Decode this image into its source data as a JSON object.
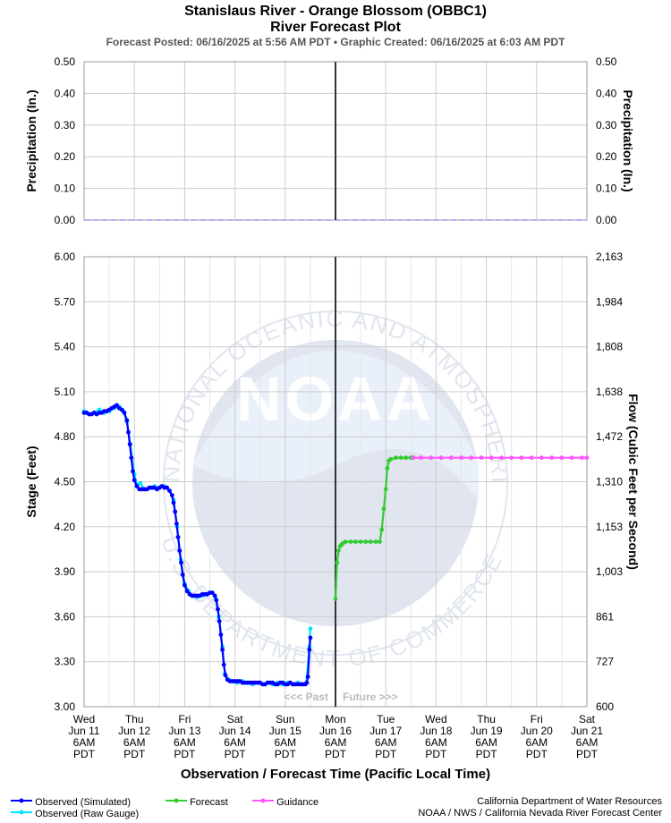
{
  "header": {
    "title_line1": "Stanislaus River - Orange Blossom (OBBC1)",
    "title_line2": "River Forecast Plot",
    "subtitle": "Forecast Posted: 06/16/2025 at 5:56 AM PDT  •  Graphic Created: 06/16/2025 at 6:03 AM PDT"
  },
  "watermark": {
    "logo_text": "NOAA",
    "ring_text_top": "NATIONAL OCEANIC AND ATMOSPHERIC ADMINISTRATION",
    "ring_text_bottom": "U.S. DEPARTMENT OF COMMERCE"
  },
  "past_future": {
    "past": "<<< Past",
    "future": "Future >>>"
  },
  "legend": [
    {
      "label": "Observed (Simulated)",
      "color": "#0000ff"
    },
    {
      "label": "Observed (Raw Gauge)",
      "color": "#00e5ff"
    },
    {
      "label": "Forecast",
      "color": "#33cc33"
    },
    {
      "label": "Guidance",
      "color": "#ff55ff"
    }
  ],
  "credits": {
    "line1": "California Department of Water Resources",
    "line2": "NOAA / NWS / California Nevada River Forecast Center"
  },
  "chart_data": [
    {
      "type": "line",
      "panel": "precipitation",
      "ylabel_left": "Precipitation (In.)",
      "ylabel_right": "Precipitation (In.)",
      "ylim": [
        0,
        0.5
      ],
      "yticks": [
        "0.00",
        "0.10",
        "0.20",
        "0.30",
        "0.40",
        "0.50"
      ],
      "grid": true,
      "series": [
        {
          "values_note": "",
          "x": [
            0,
            5
          ],
          "y": [
            0,
            0
          ],
          "color": "#9999ff"
        }
      ]
    },
    {
      "type": "line",
      "panel": "stage",
      "ylabel_left": "Stage (Feet)",
      "ylabel_right": "Flow (Cubic Feet per Second)",
      "xlabel": "Observation / Forecast Time (Pacific Local Time)",
      "ylim": [
        3.0,
        6.0
      ],
      "yticks_left": [
        "3.00",
        "3.30",
        "3.60",
        "3.90",
        "4.20",
        "4.50",
        "4.80",
        "5.10",
        "5.40",
        "5.70",
        "6.00"
      ],
      "yticks_right": [
        "600",
        "727",
        "861",
        "1,003",
        "1,153",
        "1,310",
        "1,472",
        "1,638",
        "1,808",
        "1,984",
        "2,163"
      ],
      "xticks": [
        {
          "lines": [
            "Wed",
            "Jun 11",
            "6AM",
            "PDT"
          ]
        },
        {
          "lines": [
            "Thu",
            "Jun 12",
            "6AM",
            "PDT"
          ]
        },
        {
          "lines": [
            "Fri",
            "Jun 13",
            "6AM",
            "PDT"
          ]
        },
        {
          "lines": [
            "Sat",
            "Jun 14",
            "6AM",
            "PDT"
          ]
        },
        {
          "lines": [
            "Sun",
            "Jun 15",
            "6AM",
            "PDT"
          ]
        },
        {
          "lines": [
            "Mon",
            "Jun 16",
            "6AM",
            "PDT"
          ]
        },
        {
          "lines": [
            "Tue",
            "Jun 17",
            "6AM",
            "PDT"
          ]
        },
        {
          "lines": [
            "Wed",
            "Jun 18",
            "6AM",
            "PDT"
          ]
        },
        {
          "lines": [
            "Thu",
            "Jun 19",
            "6AM",
            "PDT"
          ]
        },
        {
          "lines": [
            "Fri",
            "Jun 20",
            "6AM",
            "PDT"
          ]
        },
        {
          "lines": [
            "Sat",
            "Jun 21",
            "6AM",
            "PDT"
          ]
        }
      ],
      "grid": true,
      "series": [
        {
          "name": "Observed (Raw Gauge)",
          "color": "#00e5ff",
          "points": [
            [
              0.0,
              4.97
            ],
            [
              0.1,
              4.95
            ],
            [
              0.2,
              4.96
            ],
            [
              0.3,
              4.98
            ],
            [
              0.4,
              4.96
            ],
            [
              0.5,
              4.97
            ],
            [
              0.6,
              4.99
            ],
            [
              0.7,
              5.0
            ],
            [
              0.78,
              4.97
            ],
            [
              0.85,
              4.9
            ],
            [
              0.92,
              4.75
            ],
            [
              1.0,
              4.55
            ],
            [
              1.05,
              4.48
            ],
            [
              1.12,
              4.49
            ],
            [
              1.2,
              4.45
            ],
            [
              1.3,
              4.46
            ],
            [
              1.4,
              4.47
            ],
            [
              1.5,
              4.46
            ],
            [
              1.6,
              4.47
            ],
            [
              1.7,
              4.44
            ],
            [
              1.78,
              4.38
            ],
            [
              1.85,
              4.2
            ],
            [
              1.92,
              3.98
            ],
            [
              2.0,
              3.82
            ],
            [
              2.08,
              3.77
            ],
            [
              2.15,
              3.74
            ],
            [
              2.25,
              3.73
            ],
            [
              2.35,
              3.74
            ],
            [
              2.45,
              3.75
            ],
            [
              2.55,
              3.76
            ],
            [
              2.62,
              3.72
            ],
            [
              2.68,
              3.6
            ],
            [
              2.75,
              3.4
            ],
            [
              2.8,
              3.22
            ],
            [
              2.88,
              3.18
            ],
            [
              2.95,
              3.17
            ],
            [
              3.05,
              3.16
            ],
            [
              3.15,
              3.17
            ],
            [
              3.25,
              3.16
            ],
            [
              3.35,
              3.15
            ],
            [
              3.45,
              3.16
            ],
            [
              3.55,
              3.15
            ],
            [
              3.65,
              3.16
            ],
            [
              3.75,
              3.15
            ],
            [
              3.85,
              3.16
            ],
            [
              3.95,
              3.15
            ],
            [
              4.05,
              3.16
            ],
            [
              4.15,
              3.15
            ],
            [
              4.25,
              3.16
            ],
            [
              4.35,
              3.15
            ],
            [
              4.42,
              3.16
            ],
            [
              4.48,
              3.4
            ],
            [
              4.5,
              3.52
            ]
          ]
        },
        {
          "name": "Observed (Simulated)",
          "color": "#0000ff",
          "points": [
            [
              0.0,
              4.96
            ],
            [
              0.05,
              4.96
            ],
            [
              0.1,
              4.95
            ],
            [
              0.15,
              4.95
            ],
            [
              0.2,
              4.96
            ],
            [
              0.25,
              4.95
            ],
            [
              0.3,
              4.96
            ],
            [
              0.35,
              4.96
            ],
            [
              0.4,
              4.97
            ],
            [
              0.45,
              4.97
            ],
            [
              0.5,
              4.98
            ],
            [
              0.55,
              4.99
            ],
            [
              0.6,
              5.0
            ],
            [
              0.65,
              5.01
            ],
            [
              0.7,
              4.99
            ],
            [
              0.75,
              4.98
            ],
            [
              0.8,
              4.96
            ],
            [
              0.85,
              4.91
            ],
            [
              0.88,
              4.83
            ],
            [
              0.91,
              4.75
            ],
            [
              0.94,
              4.66
            ],
            [
              0.97,
              4.57
            ],
            [
              1.0,
              4.51
            ],
            [
              1.05,
              4.47
            ],
            [
              1.1,
              4.45
            ],
            [
              1.15,
              4.45
            ],
            [
              1.2,
              4.45
            ],
            [
              1.25,
              4.45
            ],
            [
              1.3,
              4.46
            ],
            [
              1.35,
              4.46
            ],
            [
              1.4,
              4.46
            ],
            [
              1.45,
              4.45
            ],
            [
              1.5,
              4.46
            ],
            [
              1.55,
              4.47
            ],
            [
              1.6,
              4.46
            ],
            [
              1.65,
              4.46
            ],
            [
              1.7,
              4.44
            ],
            [
              1.75,
              4.41
            ],
            [
              1.78,
              4.36
            ],
            [
              1.81,
              4.3
            ],
            [
              1.84,
              4.22
            ],
            [
              1.87,
              4.13
            ],
            [
              1.9,
              4.04
            ],
            [
              1.93,
              3.96
            ],
            [
              1.96,
              3.88
            ],
            [
              2.0,
              3.81
            ],
            [
              2.05,
              3.77
            ],
            [
              2.1,
              3.75
            ],
            [
              2.15,
              3.74
            ],
            [
              2.2,
              3.74
            ],
            [
              2.25,
              3.74
            ],
            [
              2.3,
              3.74
            ],
            [
              2.35,
              3.75
            ],
            [
              2.4,
              3.75
            ],
            [
              2.45,
              3.75
            ],
            [
              2.5,
              3.76
            ],
            [
              2.55,
              3.76
            ],
            [
              2.6,
              3.74
            ],
            [
              2.63,
              3.71
            ],
            [
              2.66,
              3.65
            ],
            [
              2.69,
              3.57
            ],
            [
              2.72,
              3.48
            ],
            [
              2.75,
              3.38
            ],
            [
              2.78,
              3.28
            ],
            [
              2.81,
              3.21
            ],
            [
              2.85,
              3.18
            ],
            [
              2.9,
              3.17
            ],
            [
              2.95,
              3.17
            ],
            [
              3.0,
              3.17
            ],
            [
              3.05,
              3.17
            ],
            [
              3.1,
              3.17
            ],
            [
              3.15,
              3.16
            ],
            [
              3.2,
              3.16
            ],
            [
              3.25,
              3.16
            ],
            [
              3.3,
              3.16
            ],
            [
              3.35,
              3.16
            ],
            [
              3.4,
              3.16
            ],
            [
              3.45,
              3.16
            ],
            [
              3.5,
              3.16
            ],
            [
              3.55,
              3.15
            ],
            [
              3.6,
              3.15
            ],
            [
              3.65,
              3.16
            ],
            [
              3.7,
              3.16
            ],
            [
              3.75,
              3.16
            ],
            [
              3.8,
              3.15
            ],
            [
              3.85,
              3.15
            ],
            [
              3.9,
              3.16
            ],
            [
              3.95,
              3.16
            ],
            [
              4.0,
              3.15
            ],
            [
              4.05,
              3.15
            ],
            [
              4.1,
              3.16
            ],
            [
              4.15,
              3.15
            ],
            [
              4.2,
              3.15
            ],
            [
              4.25,
              3.15
            ],
            [
              4.3,
              3.15
            ],
            [
              4.35,
              3.15
            ],
            [
              4.4,
              3.15
            ],
            [
              4.43,
              3.16
            ],
            [
              4.45,
              3.2
            ],
            [
              4.48,
              3.38
            ],
            [
              4.5,
              3.46
            ]
          ]
        },
        {
          "name": "Forecast",
          "color": "#33cc33",
          "points": [
            [
              5.0,
              3.72
            ],
            [
              5.03,
              3.96
            ],
            [
              5.06,
              4.04
            ],
            [
              5.09,
              4.07
            ],
            [
              5.12,
              4.08
            ],
            [
              5.15,
              4.09
            ],
            [
              5.2,
              4.1
            ],
            [
              5.3,
              4.1
            ],
            [
              5.4,
              4.1
            ],
            [
              5.5,
              4.1
            ],
            [
              5.6,
              4.1
            ],
            [
              5.7,
              4.1
            ],
            [
              5.8,
              4.1
            ],
            [
              5.88,
              4.1
            ],
            [
              5.92,
              4.18
            ],
            [
              5.96,
              4.32
            ],
            [
              6.0,
              4.45
            ],
            [
              6.03,
              4.59
            ],
            [
              6.06,
              4.64
            ],
            [
              6.1,
              4.65
            ],
            [
              6.2,
              4.66
            ],
            [
              6.3,
              4.66
            ],
            [
              6.4,
              4.66
            ],
            [
              6.5,
              4.66
            ],
            [
              6.55,
              4.66
            ]
          ]
        },
        {
          "name": "Guidance",
          "color": "#ff55ff",
          "points": [
            [
              6.55,
              4.66
            ],
            [
              6.7,
              4.66
            ],
            [
              6.9,
              4.66
            ],
            [
              7.1,
              4.66
            ],
            [
              7.3,
              4.66
            ],
            [
              7.5,
              4.66
            ],
            [
              7.7,
              4.66
            ],
            [
              7.9,
              4.66
            ],
            [
              8.1,
              4.66
            ],
            [
              8.3,
              4.66
            ],
            [
              8.5,
              4.66
            ],
            [
              8.7,
              4.66
            ],
            [
              8.9,
              4.66
            ],
            [
              9.1,
              4.66
            ],
            [
              9.3,
              4.66
            ],
            [
              9.5,
              4.66
            ],
            [
              9.7,
              4.66
            ],
            [
              9.9,
              4.66
            ],
            [
              10.0,
              4.66
            ]
          ]
        }
      ],
      "current_time_x": 5.0
    }
  ]
}
